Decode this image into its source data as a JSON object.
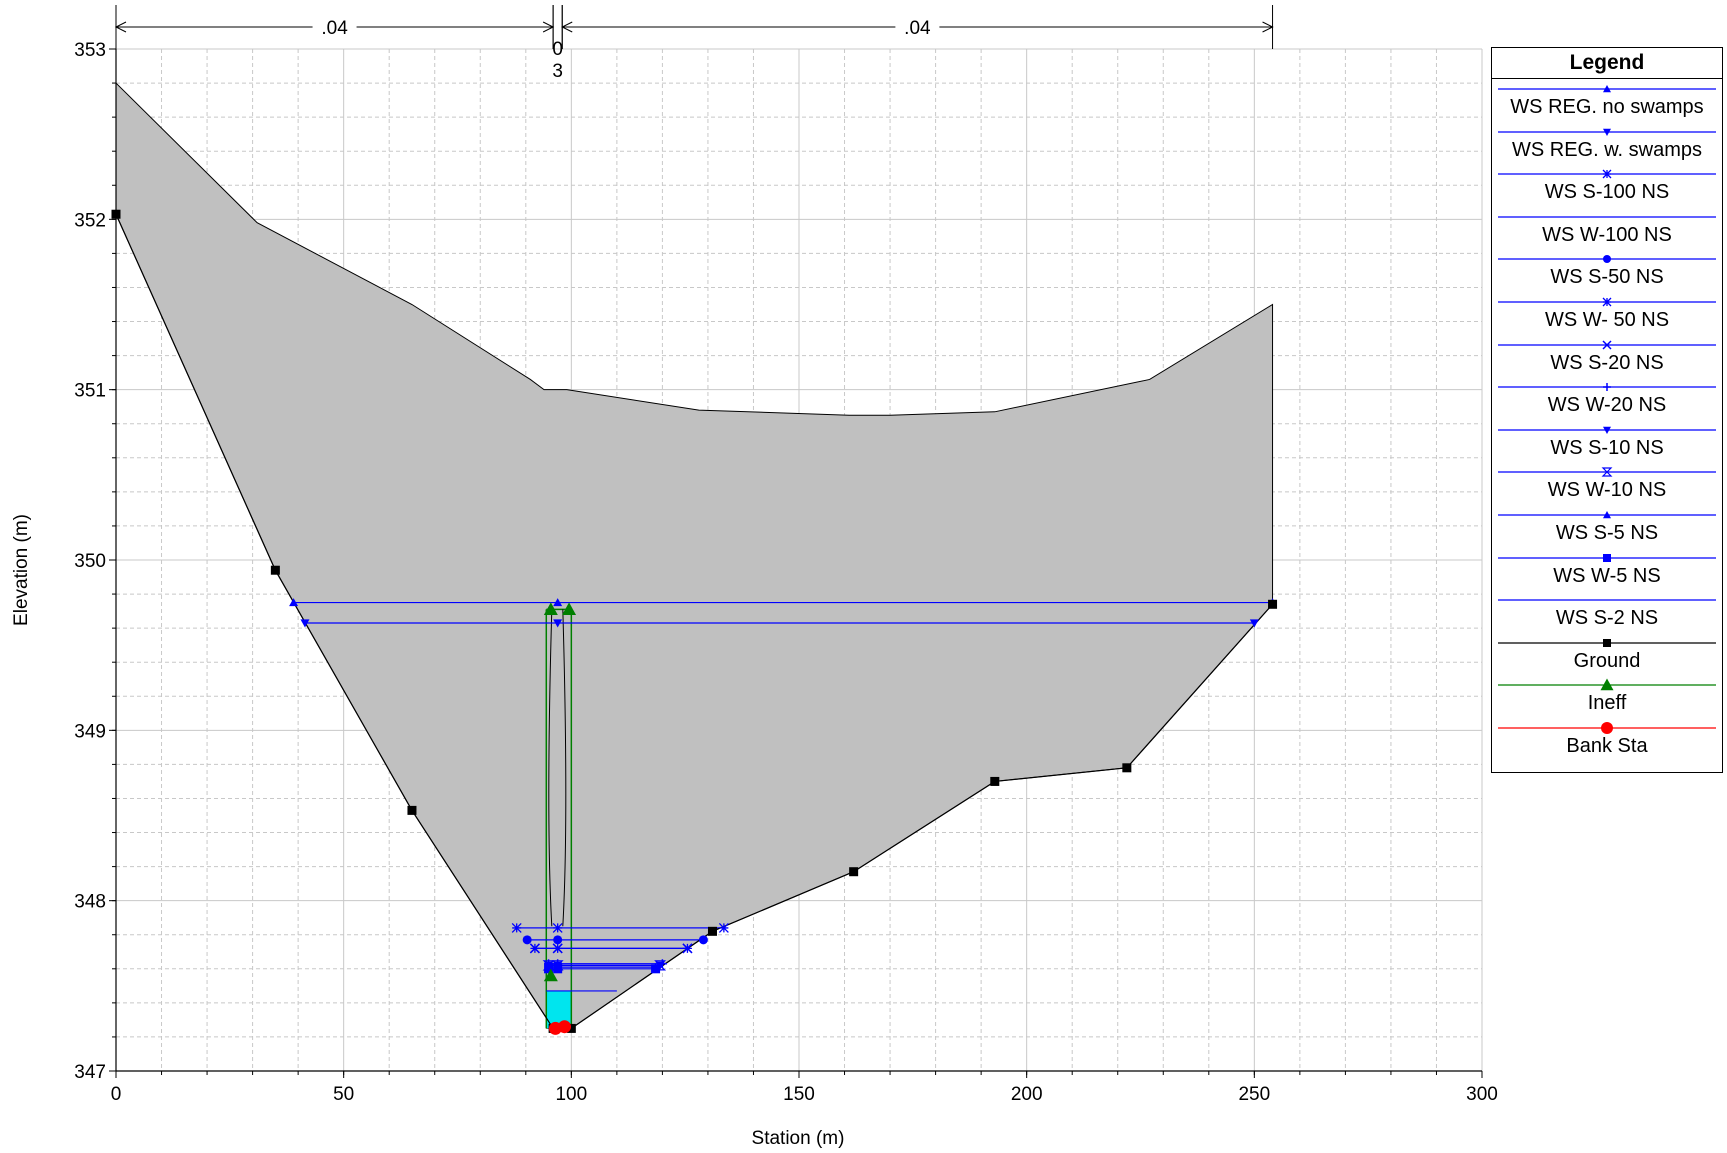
{
  "chart_data": {
    "type": "line",
    "xlabel": "Station (m)",
    "ylabel": "Elevation (m)",
    "xlim": [
      0,
      300
    ],
    "ylim": [
      347,
      353
    ],
    "x_ticks": [
      "0",
      "50",
      "100",
      "150",
      "200",
      "250",
      "300"
    ],
    "y_ticks": [
      "347",
      "348",
      "349",
      "350",
      "351",
      "352",
      "353"
    ],
    "grid": true,
    "legend_position": "right",
    "n_values": [
      {
        "label": ".04",
        "from": 0,
        "to": 96
      },
      {
        "label": "0\n3",
        "from": 96,
        "to": 98
      },
      {
        "label": ".04",
        "from": 98,
        "to": 254
      }
    ],
    "upper_ground": [
      [
        0,
        352.8
      ],
      [
        31,
        351.98
      ],
      [
        65,
        351.5
      ],
      [
        91,
        351.06
      ],
      [
        94,
        351.0
      ],
      [
        99,
        351.0
      ],
      [
        128,
        350.88
      ],
      [
        161,
        350.85
      ],
      [
        170,
        350.85
      ],
      [
        193,
        350.87
      ],
      [
        227,
        351.06
      ],
      [
        254,
        351.5
      ]
    ],
    "ground": [
      [
        0,
        352.03
      ],
      [
        35,
        349.94
      ],
      [
        65,
        348.53
      ],
      [
        96,
        347.25
      ],
      [
        100,
        347.25
      ],
      [
        131,
        347.82
      ],
      [
        162,
        348.17
      ],
      [
        193,
        348.7
      ],
      [
        222,
        348.78
      ],
      [
        254,
        349.74
      ]
    ],
    "bank_stations": [
      [
        96.5,
        347.25
      ],
      [
        98.5,
        347.26
      ]
    ],
    "channel_water": {
      "x": [
        94.5,
        100
      ],
      "top": 347.47,
      "bottom": 347.25
    },
    "ineffective": {
      "left_x": 94.5,
      "right_x": 100,
      "top": 349.71,
      "bottom": 347.25,
      "markers": [
        [
          95.5,
          349.71
        ],
        [
          99.5,
          349.71
        ],
        [
          95.5,
          347.56
        ]
      ]
    },
    "series": [
      {
        "name": "WS REG. no swamps",
        "color": "#0000ff",
        "marker": "triangle-up",
        "elevation": 349.75,
        "x_range": [
          39,
          254
        ]
      },
      {
        "name": "WS REG. w. swamps",
        "color": "#0000ff",
        "marker": "triangle-down",
        "elevation": 349.63,
        "x_range": [
          41.5,
          250
        ]
      },
      {
        "name": "WS S-100 NS",
        "color": "#0000ff",
        "marker": "star",
        "elevation": 347.84,
        "x_range": [
          88,
          133.5
        ]
      },
      {
        "name": "WS W-100 NS",
        "color": "#0000ff",
        "marker": "none",
        "elevation": 347.84,
        "x_range": [
          88,
          133.5
        ]
      },
      {
        "name": "WS S-50 NS",
        "color": "#0000ff",
        "marker": "circle",
        "elevation": 347.77,
        "x_range": [
          90.3,
          129
        ]
      },
      {
        "name": "WS W- 50 NS",
        "color": "#0000ff",
        "marker": "asterisk",
        "elevation": 347.72,
        "x_range": [
          92,
          125.5
        ]
      },
      {
        "name": "WS S-20 NS",
        "color": "#0000ff",
        "marker": "x",
        "elevation": 347.72,
        "x_range": [
          92,
          125.5
        ]
      },
      {
        "name": "WS W-20 NS",
        "color": "#0000ff",
        "marker": "plus",
        "elevation": 347.63,
        "x_range": [
          95,
          120
        ]
      },
      {
        "name": "WS S-10 NS",
        "color": "#0000ff",
        "marker": "triangle-down",
        "elevation": 347.62,
        "x_range": [
          95,
          119.5
        ]
      },
      {
        "name": "WS W-10 NS",
        "color": "#0000ff",
        "marker": "hourglass",
        "elevation": 347.62,
        "x_range": [
          95,
          119.5
        ]
      },
      {
        "name": "WS S-5 NS",
        "color": "#0000ff",
        "marker": "triangle-up",
        "elevation": 347.61,
        "x_range": [
          95,
          118.5
        ]
      },
      {
        "name": "WS W-5 NS",
        "color": "#0000ff",
        "marker": "square",
        "elevation": 347.6,
        "x_range": [
          95,
          118.5
        ]
      },
      {
        "name": "WS S-2 NS",
        "color": "#0000ff",
        "marker": "none",
        "elevation": 347.47,
        "x_range": [
          94.5,
          110
        ]
      }
    ],
    "colors": {
      "ground_fill": "#c0c0c0",
      "water_fill": "#00e5ee",
      "ineff": "#007f00",
      "bank": "#ff0000",
      "ground_line": "#000000"
    }
  },
  "legend": {
    "title": "Legend",
    "items": [
      {
        "label": "WS REG. no swamps",
        "color": "#0000ff",
        "marker": "triangle-up"
      },
      {
        "label": "WS REG. w. swamps",
        "color": "#0000ff",
        "marker": "triangle-down"
      },
      {
        "label": "WS S-100 NS",
        "color": "#0000ff",
        "marker": "star"
      },
      {
        "label": "WS W-100 NS",
        "color": "#0000ff",
        "marker": "none"
      },
      {
        "label": "WS S-50 NS",
        "color": "#0000ff",
        "marker": "circle"
      },
      {
        "label": "WS W- 50 NS",
        "color": "#0000ff",
        "marker": "asterisk"
      },
      {
        "label": "WS S-20 NS",
        "color": "#0000ff",
        "marker": "x"
      },
      {
        "label": "WS W-20 NS",
        "color": "#0000ff",
        "marker": "plus"
      },
      {
        "label": "WS S-10 NS",
        "color": "#0000ff",
        "marker": "triangle-down"
      },
      {
        "label": "WS W-10 NS",
        "color": "#0000ff",
        "marker": "hourglass"
      },
      {
        "label": "WS S-5 NS",
        "color": "#0000ff",
        "marker": "triangle-up"
      },
      {
        "label": "WS W-5 NS",
        "color": "#0000ff",
        "marker": "square"
      },
      {
        "label": "WS S-2 NS",
        "color": "#0000ff",
        "marker": "none"
      },
      {
        "label": "Ground",
        "color": "#000000",
        "marker": "square"
      },
      {
        "label": "Ineff",
        "color": "#007f00",
        "marker": "triangle-up"
      },
      {
        "label": "Bank Sta",
        "color": "#ff0000",
        "marker": "dot"
      }
    ]
  }
}
